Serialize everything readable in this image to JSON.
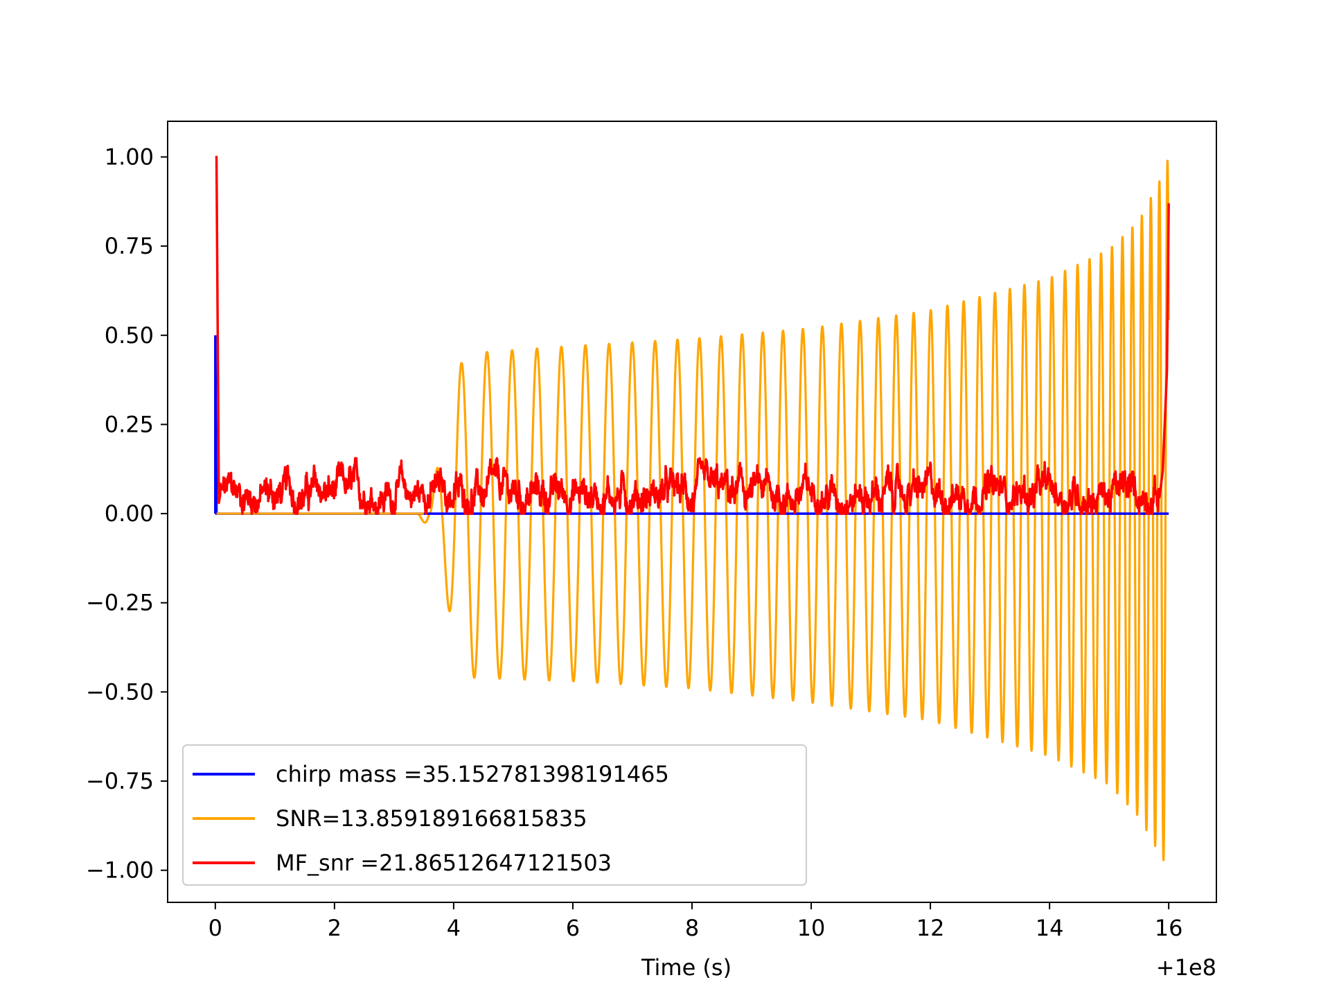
{
  "chart_data": {
    "type": "line",
    "title": "",
    "xlabel": "Time (s)",
    "ylabel": "",
    "x_offset_label": "+1e8",
    "xlim": [
      -0.8,
      16.8
    ],
    "ylim": [
      -1.09,
      1.1
    ],
    "xticks": [
      0,
      2,
      4,
      6,
      8,
      10,
      12,
      14,
      16
    ],
    "xtick_labels": [
      "0",
      "2",
      "4",
      "6",
      "8",
      "10",
      "12",
      "14",
      "16"
    ],
    "yticks": [
      1.0,
      0.75,
      0.5,
      0.25,
      0.0,
      -0.25,
      -0.5,
      -0.75,
      -1.0
    ],
    "ytick_labels": [
      "1.00",
      "0.75",
      "0.50",
      "0.25",
      "0.00",
      "−0.25",
      "−0.50",
      "−0.75",
      "−1.00"
    ],
    "grid": false,
    "legend_position": "lower-left",
    "series": [
      {
        "name": "chirp mass =35.152781398191465",
        "color": "#0000ff",
        "description_points": [
          [
            0.0,
            0.0
          ],
          [
            0.0,
            0.5
          ],
          [
            0.02,
            0.0
          ],
          [
            16.0,
            0.0
          ]
        ]
      },
      {
        "name": "SNR=13.859189166815835",
        "color": "#ffa500",
        "envelope": {
          "x": [
            0.0,
            3.4,
            3.6,
            3.8,
            4.0,
            4.3,
            6,
            8,
            10,
            12,
            14,
            15,
            15.5,
            15.9,
            16.0
          ],
          "upper": [
            0.0,
            0.0,
            0.0,
            0.22,
            0.4,
            0.45,
            0.47,
            0.49,
            0.52,
            0.57,
            0.66,
            0.74,
            0.82,
            0.95,
            1.0
          ],
          "lower": [
            0.0,
            0.0,
            -0.05,
            -0.15,
            -0.35,
            -0.46,
            -0.47,
            -0.49,
            -0.53,
            -0.58,
            -0.68,
            -0.76,
            -0.85,
            -0.97,
            -0.99
          ]
        }
      },
      {
        "name": "MF_snr =21.86512647121503",
        "color": "#ff0000",
        "description_points": [
          [
            0.0,
            1.0
          ],
          [
            0.05,
            0.03
          ],
          [
            1,
            0.06
          ],
          [
            4,
            0.05
          ],
          [
            8,
            0.06
          ],
          [
            12,
            0.05
          ],
          [
            15.8,
            0.06
          ],
          [
            16.0,
            0.87
          ]
        ]
      }
    ]
  }
}
